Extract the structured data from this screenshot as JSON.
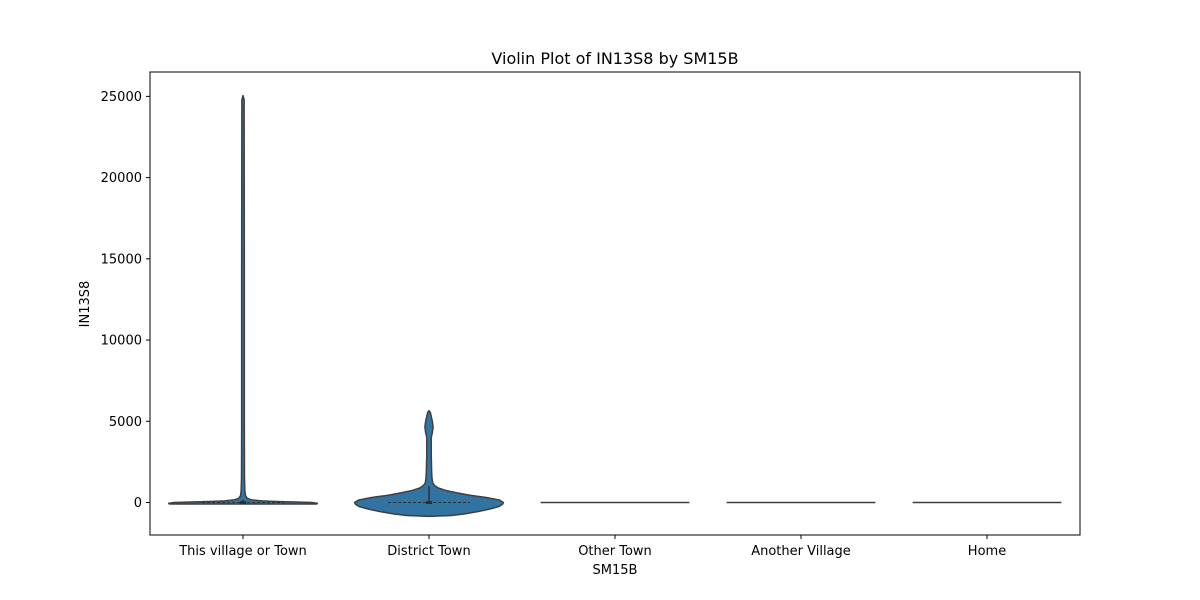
{
  "chart_data": {
    "type": "violin",
    "title": "Violin Plot of IN13S8 by SM15B",
    "xlabel": "SM15B",
    "ylabel": "IN13S8",
    "ylim": [
      -2000,
      26500
    ],
    "yticks": [
      0,
      5000,
      10000,
      15000,
      20000,
      25000
    ],
    "ytick_labels": [
      "0",
      "5000",
      "10000",
      "15000",
      "20000",
      "25000"
    ],
    "grid": false,
    "legend": "none",
    "colors": {
      "fill": "#3274a1",
      "edge": "#3f3f3f",
      "inner": "#2f2f2f"
    },
    "categories": [
      "This village or Town",
      "District Town",
      "Other Town",
      "Another Village",
      "Home"
    ],
    "violins": [
      {
        "category": "This village or Town",
        "quartiles": [
          0,
          0,
          0
        ],
        "whisker": [
          0,
          150
        ],
        "profile": [
          [
            -90,
            0.99
          ],
          [
            -50,
            1.0
          ],
          [
            0,
            0.93
          ],
          [
            30,
            0.7
          ],
          [
            60,
            0.45
          ],
          [
            100,
            0.25
          ],
          [
            160,
            0.12
          ],
          [
            250,
            0.06
          ],
          [
            400,
            0.035
          ],
          [
            700,
            0.025
          ],
          [
            1500,
            0.02
          ],
          [
            5000,
            0.018
          ],
          [
            15000,
            0.018
          ],
          [
            24800,
            0.015
          ],
          [
            25050,
            0.0
          ]
        ]
      },
      {
        "category": "District Town",
        "quartiles": [
          0,
          0,
          0
        ],
        "whisker": [
          0,
          1000
        ],
        "profile": [
          [
            -850,
            0.0
          ],
          [
            -800,
            0.3
          ],
          [
            -700,
            0.48
          ],
          [
            -550,
            0.67
          ],
          [
            -400,
            0.82
          ],
          [
            -250,
            0.94
          ],
          [
            -100,
            0.99
          ],
          [
            0,
            1.0
          ],
          [
            150,
            0.95
          ],
          [
            300,
            0.78
          ],
          [
            450,
            0.55
          ],
          [
            600,
            0.37
          ],
          [
            750,
            0.22
          ],
          [
            900,
            0.12
          ],
          [
            1050,
            0.075
          ],
          [
            1200,
            0.05
          ],
          [
            1500,
            0.04
          ],
          [
            2000,
            0.035
          ],
          [
            3000,
            0.03
          ],
          [
            4000,
            0.03
          ],
          [
            4300,
            0.045
          ],
          [
            4650,
            0.055
          ],
          [
            5000,
            0.045
          ],
          [
            5300,
            0.03
          ],
          [
            5550,
            0.018
          ],
          [
            5650,
            0.0
          ]
        ]
      },
      {
        "category": "Other Town",
        "quartiles": [
          0,
          0,
          0
        ],
        "whisker": [
          0,
          0
        ],
        "profile": [
          [
            0,
            1.0
          ]
        ]
      },
      {
        "category": "Another Village",
        "quartiles": [
          0,
          0,
          0
        ],
        "whisker": [
          0,
          0
        ],
        "profile": [
          [
            0,
            1.0
          ]
        ]
      },
      {
        "category": "Home",
        "quartiles": [
          0,
          0,
          0
        ],
        "whisker": [
          0,
          0
        ],
        "profile": [
          [
            0,
            1.0
          ]
        ]
      }
    ]
  }
}
